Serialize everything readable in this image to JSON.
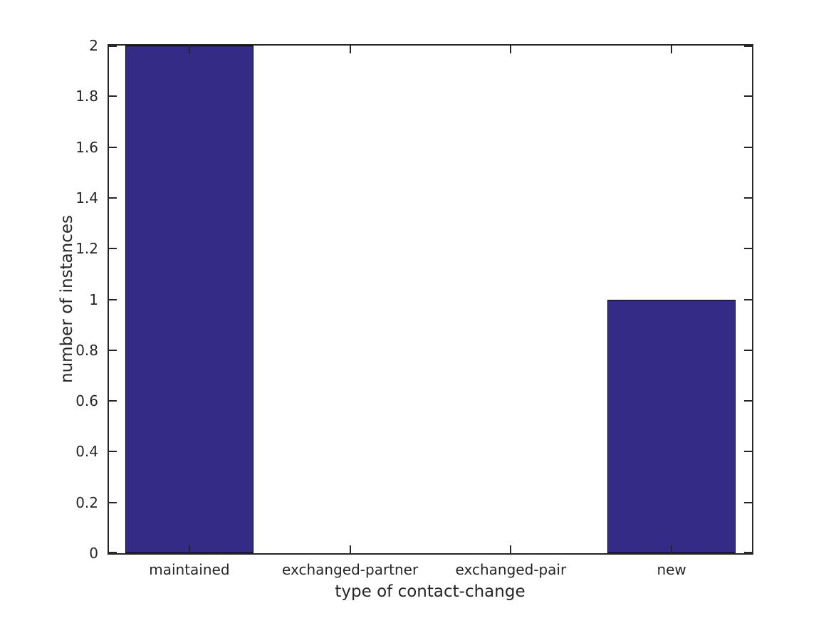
{
  "figure": {
    "background": "#ffffff"
  },
  "chart_data": {
    "type": "bar",
    "title": "",
    "categories": [
      "maintained",
      "exchanged-partner",
      "exchanged-pair",
      "new"
    ],
    "values": [
      2,
      0,
      0,
      1
    ],
    "xlabel": "type of contact-change",
    "ylabel": "number of instances",
    "ylim": [
      0,
      2
    ],
    "yticks": [
      0,
      0.2,
      0.4,
      0.6,
      0.8,
      1,
      1.2,
      1.4,
      1.6,
      1.8,
      2
    ],
    "ytick_labels": [
      "0",
      "0.2",
      "0.4",
      "0.6",
      "0.8",
      "1",
      "1.2",
      "1.4",
      "1.6",
      "1.8",
      "2"
    ],
    "bar_width_fraction": 0.8,
    "bar_color": "#342b87",
    "bar_edge_color": "#000000",
    "axis_color": "#262626",
    "text_color": "#262626",
    "grid": false,
    "legend": null,
    "tick_direction": "in",
    "box": true
  }
}
